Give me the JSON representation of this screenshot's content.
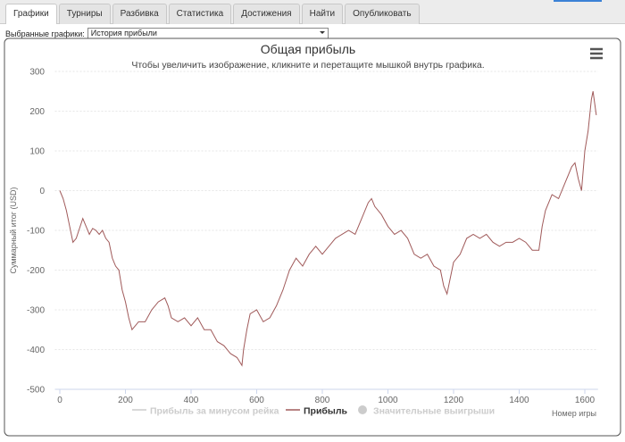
{
  "tabs": [
    "Графики",
    "Турниры",
    "Разбивка",
    "Статистика",
    "Достижения",
    "Найти",
    "Опубликовать"
  ],
  "active_tab": 0,
  "selector": {
    "label": "Выбранные графики:",
    "value": "История прибыли"
  },
  "chart_data": {
    "type": "line",
    "title": "Общая прибыль",
    "subtitle": "Чтобы увеличить изображение, кликните и перетащите мышкой внутрь графика.",
    "x_label": "Номер игры",
    "y_label": "Суммарный итог (USD)",
    "x": [
      0,
      10,
      20,
      30,
      40,
      50,
      60,
      70,
      80,
      90,
      100,
      110,
      120,
      130,
      140,
      150,
      160,
      170,
      180,
      190,
      200,
      210,
      220,
      230,
      240,
      260,
      280,
      300,
      320,
      330,
      340,
      360,
      380,
      400,
      420,
      440,
      460,
      480,
      500,
      520,
      540,
      555,
      560,
      570,
      580,
      600,
      620,
      640,
      660,
      680,
      700,
      720,
      740,
      760,
      780,
      800,
      820,
      840,
      860,
      880,
      900,
      920,
      940,
      950,
      960,
      980,
      1000,
      1020,
      1040,
      1060,
      1080,
      1100,
      1120,
      1140,
      1160,
      1170,
      1180,
      1190,
      1200,
      1220,
      1240,
      1260,
      1280,
      1300,
      1320,
      1340,
      1360,
      1380,
      1400,
      1420,
      1440,
      1460,
      1470,
      1480,
      1500,
      1520,
      1540,
      1560,
      1570,
      1580,
      1590,
      1600,
      1610,
      1620,
      1625,
      1635
    ],
    "series": [
      {
        "name": "Прибыль",
        "color": "#a05a5a",
        "values": [
          0,
          -20,
          -50,
          -90,
          -130,
          -120,
          -95,
          -70,
          -90,
          -110,
          -95,
          -100,
          -110,
          -100,
          -120,
          -130,
          -170,
          -190,
          -200,
          -250,
          -280,
          -320,
          -350,
          -340,
          -330,
          -330,
          -300,
          -280,
          -270,
          -290,
          -320,
          -330,
          -320,
          -340,
          -320,
          -350,
          -350,
          -380,
          -390,
          -410,
          -420,
          -440,
          -400,
          -350,
          -310,
          -300,
          -330,
          -320,
          -290,
          -250,
          -200,
          -170,
          -190,
          -160,
          -140,
          -160,
          -140,
          -120,
          -110,
          -100,
          -110,
          -70,
          -30,
          -20,
          -40,
          -60,
          -90,
          -110,
          -100,
          -120,
          -160,
          -170,
          -160,
          -190,
          -200,
          -240,
          -260,
          -220,
          -180,
          -160,
          -120,
          -110,
          -120,
          -110,
          -130,
          -140,
          -130,
          -130,
          -120,
          -130,
          -150,
          -150,
          -90,
          -50,
          -10,
          -20,
          20,
          60,
          70,
          30,
          0,
          100,
          150,
          230,
          250,
          190
        ]
      }
    ],
    "hidden_series": [
      {
        "name": "Прибыль за минусом рейка",
        "marker": "line"
      },
      {
        "name": "Значительные выигрыши",
        "marker": "circle"
      }
    ],
    "xlim": [
      -15,
      1640
    ],
    "xticks": [
      0,
      200,
      400,
      600,
      800,
      1000,
      1200,
      1400,
      1600
    ],
    "ylim": [
      -500,
      300
    ],
    "yticks": [
      -500,
      -400,
      -300,
      -200,
      -100,
      0,
      100,
      200,
      300
    ],
    "grid": true
  }
}
